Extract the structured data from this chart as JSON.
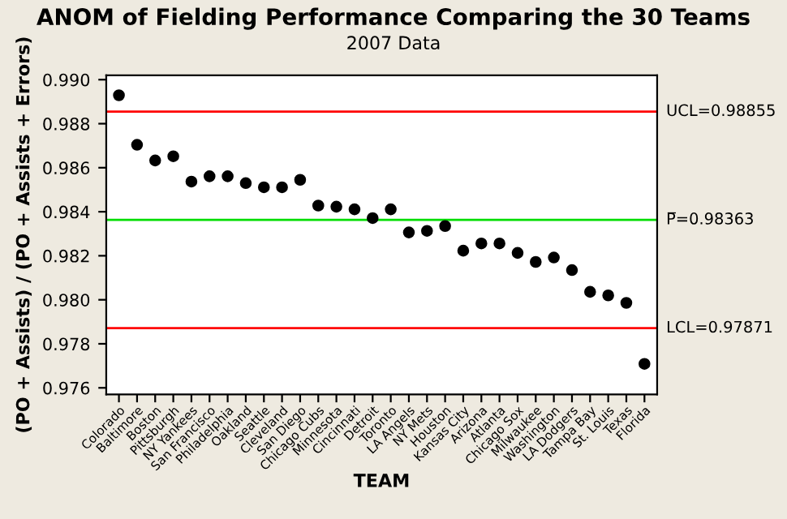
{
  "chart_data": {
    "type": "scatter",
    "title": "ANOM of Fielding Performance Comparing the 30 Teams",
    "subtitle": "2007 Data",
    "xlabel": "TEAM",
    "ylabel": "(PO + Assists) / (PO + Assists + Errors)",
    "categories": [
      "Colorado",
      "Baltimore",
      "Boston",
      "Pittsburgh",
      "NY Yankees",
      "San Francisco",
      "Philadelphia",
      "Oakland",
      "Seattle",
      "Cleveland",
      "San Diego",
      "Chicago Cubs",
      "Minnesota",
      "Cincinnati",
      "Detroit",
      "Toronto",
      "LA Angels",
      "NY Mets",
      "Houston",
      "Kansas City",
      "Arizona",
      "Atlanta",
      "Chicago Sox",
      "Milwaukee",
      "Washington",
      "LA Dodgers",
      "Tampa Bay",
      "St. Louis",
      "Texas",
      "Florida"
    ],
    "series": [
      {
        "color": "#000000",
        "values": [
          0.98929,
          0.98704,
          0.98633,
          0.98652,
          0.98537,
          0.98561,
          0.98561,
          0.9853,
          0.98511,
          0.98511,
          0.98545,
          0.98428,
          0.98423,
          0.98411,
          0.98371,
          0.98411,
          0.98306,
          0.98313,
          0.98335,
          0.98223,
          0.98256,
          0.98256,
          0.98213,
          0.98172,
          0.98192,
          0.98135,
          0.98036,
          0.9802,
          0.97986,
          0.97709
        ]
      }
    ],
    "marker": "circle",
    "ylim": [
      0.9757,
      0.9902
    ],
    "yticks": [
      {
        "value": 0.976,
        "label": "0.976"
      },
      {
        "value": 0.978,
        "label": "0.978"
      },
      {
        "value": 0.98,
        "label": "0.980"
      },
      {
        "value": 0.982,
        "label": "0.982"
      },
      {
        "value": 0.984,
        "label": "0.984"
      },
      {
        "value": 0.986,
        "label": "0.986"
      },
      {
        "value": 0.988,
        "label": "0.988"
      },
      {
        "value": 0.99,
        "label": "0.990"
      }
    ],
    "ref_lines": [
      {
        "axis": "y",
        "value": 0.98855,
        "label": "UCL=0.98855",
        "color": "#ff0000"
      },
      {
        "axis": "y",
        "value": 0.98363,
        "label": "P̅=0.98363",
        "color": "#00dd00"
      },
      {
        "axis": "y",
        "value": 0.97871,
        "label": "LCL=0.97871",
        "color": "#ff0000"
      }
    ],
    "grid": false,
    "legend": false
  }
}
